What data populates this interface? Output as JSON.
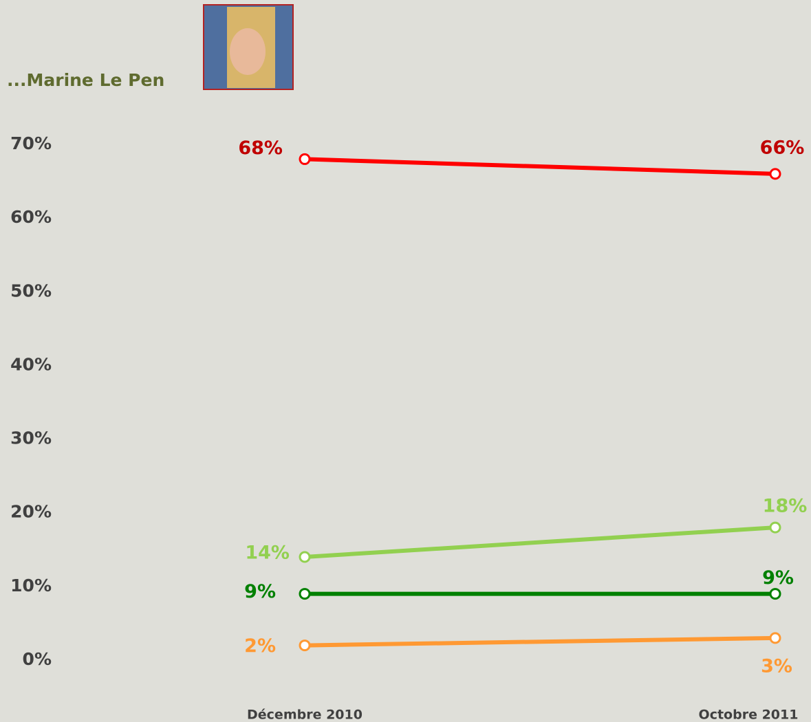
{
  "chart_data": {
    "type": "line",
    "title": "...Marine Le Pen",
    "categories": [
      "Décembre 2010",
      "Octobre 2011"
    ],
    "series": [
      {
        "color": "#ff0000",
        "label_color": "#c00000",
        "values": [
          68,
          66
        ],
        "value_labels": [
          "68%",
          "66%"
        ]
      },
      {
        "color": "#92d050",
        "label_color": "#92d050",
        "values": [
          14,
          18
        ],
        "value_labels": [
          "14%",
          "18%"
        ]
      },
      {
        "color": "#008000",
        "label_color": "#008000",
        "values": [
          9,
          9
        ],
        "value_labels": [
          "9%",
          "9%"
        ]
      },
      {
        "color": "#ff9933",
        "label_color": "#ff9933",
        "values": [
          2,
          3
        ],
        "value_labels": [
          "2%",
          "3%"
        ]
      }
    ],
    "ylim": [
      0,
      70
    ],
    "yticks": [
      {
        "value": 0,
        "label": "0%"
      },
      {
        "value": 10,
        "label": "10%"
      },
      {
        "value": 20,
        "label": "20%"
      },
      {
        "value": 30,
        "label": "30%"
      },
      {
        "value": 40,
        "label": "40%"
      },
      {
        "value": 50,
        "label": "50%"
      },
      {
        "value": 60,
        "label": "60%"
      },
      {
        "value": 70,
        "label": "70%"
      }
    ],
    "grid": false
  }
}
